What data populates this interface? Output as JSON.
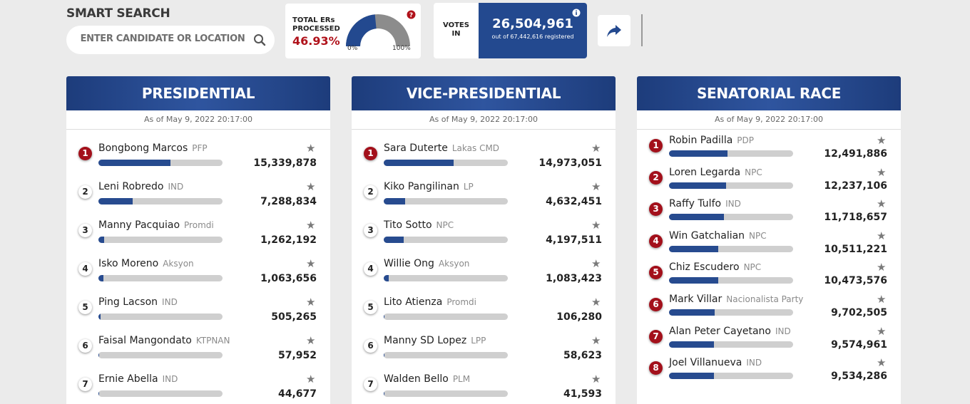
{
  "header": {
    "title": "SMART SEARCH",
    "search_placeholder": "ENTER CANDIDATE OR LOCATION",
    "ers_processed": {
      "label": "TOTAL ERs PROCESSED",
      "value": {
        "value": 46.93,
        "label": "46.93%"
      },
      "scale": [
        {
          "value": 0,
          "label": "0%"
        },
        {
          "value": 100,
          "label": "100%"
        }
      ]
    },
    "votes": {
      "label": "VOTES IN",
      "count": {
        "value": 26504961,
        "label": "26,504,961"
      },
      "registered": "out of 67,442,616 registered"
    }
  },
  "panels": [
    {
      "title": "PRESIDENTIAL",
      "as_of": "As of May 9, 2022 20:17:00",
      "candidates": [
        {
          "rank": 1,
          "name": "Bongbong Marcos",
          "party": "PFP",
          "votes": {
            "value": 15339878,
            "label": "15,339,878"
          }
        },
        {
          "rank": 2,
          "name": "Leni Robredo",
          "party": "IND",
          "votes": {
            "value": 7288834,
            "label": "7,288,834"
          }
        },
        {
          "rank": 3,
          "name": "Manny Pacquiao",
          "party": "Promdi",
          "votes": {
            "value": 1262192,
            "label": "1,262,192"
          }
        },
        {
          "rank": 4,
          "name": "Isko Moreno",
          "party": "Aksyon",
          "votes": {
            "value": 1063656,
            "label": "1,063,656"
          }
        },
        {
          "rank": 5,
          "name": "Ping Lacson",
          "party": "IND",
          "votes": {
            "value": 505265,
            "label": "505,265"
          }
        },
        {
          "rank": 6,
          "name": "Faisal Mangondato",
          "party": "KTPNAN",
          "votes": {
            "value": 57952,
            "label": "57,952"
          }
        },
        {
          "rank": 7,
          "name": "Ernie Abella",
          "party": "IND",
          "votes": {
            "value": 44677,
            "label": "44,677"
          }
        }
      ]
    },
    {
      "title": "VICE-PRESIDENTIAL",
      "as_of": "As of May 9, 2022 20:17:00",
      "candidates": [
        {
          "rank": 1,
          "name": "Sara Duterte",
          "party": "Lakas CMD",
          "votes": {
            "value": 14973051,
            "label": "14,973,051"
          }
        },
        {
          "rank": 2,
          "name": "Kiko Pangilinan",
          "party": "LP",
          "votes": {
            "value": 4632451,
            "label": "4,632,451"
          }
        },
        {
          "rank": 3,
          "name": "Tito Sotto",
          "party": "NPC",
          "votes": {
            "value": 4197511,
            "label": "4,197,511"
          }
        },
        {
          "rank": 4,
          "name": "Willie Ong",
          "party": "Aksyon",
          "votes": {
            "value": 1083423,
            "label": "1,083,423"
          }
        },
        {
          "rank": 5,
          "name": "Lito Atienza",
          "party": "Promdi",
          "votes": {
            "value": 106280,
            "label": "106,280"
          }
        },
        {
          "rank": 6,
          "name": "Manny SD Lopez",
          "party": "LPP",
          "votes": {
            "value": 58623,
            "label": "58,623"
          }
        },
        {
          "rank": 7,
          "name": "Walden Bello",
          "party": "PLM",
          "votes": {
            "value": 41593,
            "label": "41,593"
          }
        }
      ]
    },
    {
      "title": "SENATORIAL RACE",
      "as_of": "As of May 9, 2022 20:17:00",
      "candidates": [
        {
          "rank": 1,
          "name": "Robin Padilla",
          "party": "PDP",
          "votes": {
            "value": 12491886,
            "label": "12,491,886"
          }
        },
        {
          "rank": 2,
          "name": "Loren Legarda",
          "party": "NPC",
          "votes": {
            "value": 12237106,
            "label": "12,237,106"
          }
        },
        {
          "rank": 3,
          "name": "Raffy Tulfo",
          "party": "IND",
          "votes": {
            "value": 11718657,
            "label": "11,718,657"
          }
        },
        {
          "rank": 4,
          "name": "Win Gatchalian",
          "party": "NPC",
          "votes": {
            "value": 10511221,
            "label": "10,511,221"
          }
        },
        {
          "rank": 5,
          "name": "Chiz Escudero",
          "party": "NPC",
          "votes": {
            "value": 10473576,
            "label": "10,473,576"
          }
        },
        {
          "rank": 6,
          "name": "Mark Villar",
          "party": "Nacionalista Party",
          "votes": {
            "value": 9702505,
            "label": "9,702,505"
          }
        },
        {
          "rank": 7,
          "name": "Alan Peter Cayetano",
          "party": "IND",
          "votes": {
            "value": 9574961,
            "label": "9,574,961"
          }
        },
        {
          "rank": 8,
          "name": "Joel Villanueva",
          "party": "IND",
          "votes": {
            "value": 9534286,
            "label": "9,534,286"
          }
        }
      ]
    }
  ]
}
